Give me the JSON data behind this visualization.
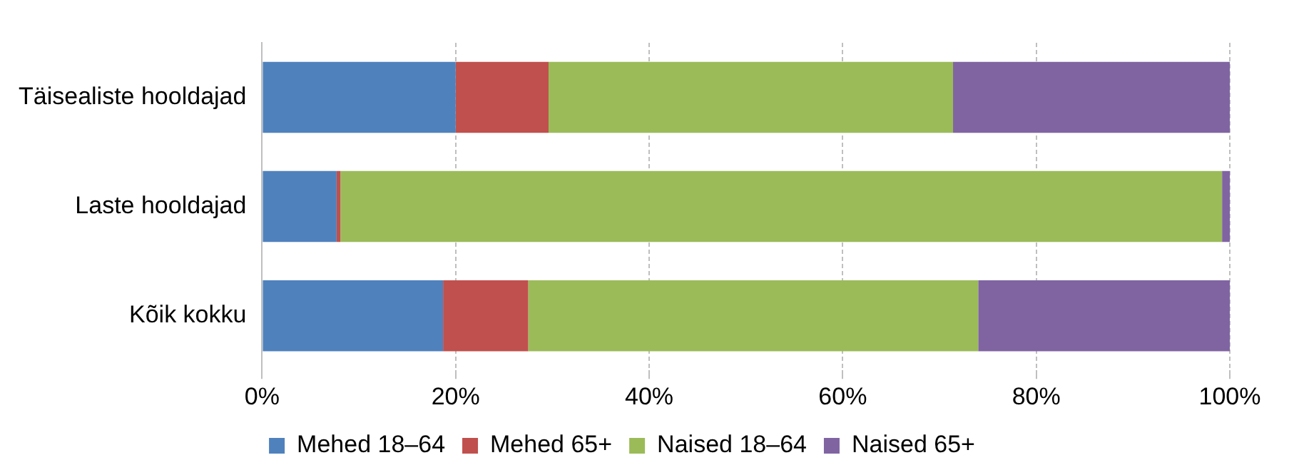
{
  "chart_data": {
    "type": "bar",
    "orientation": "horizontal",
    "stacked": true,
    "categories": [
      "Täisealiste hooldajad",
      "Laste hooldajad",
      "Kõik kokku"
    ],
    "series": [
      {
        "name": "Mehed 18–64",
        "color": "#4f81bd",
        "values": [
          20.0,
          7.7,
          18.7
        ]
      },
      {
        "name": "Mehed 65+",
        "color": "#c0504d",
        "values": [
          9.6,
          0.4,
          8.8
        ]
      },
      {
        "name": "Naised 18–64",
        "color": "#9bbb59",
        "values": [
          41.8,
          91.1,
          46.5
        ]
      },
      {
        "name": "Naised 65+",
        "color": "#8064a2",
        "values": [
          28.6,
          0.8,
          26.0
        ]
      }
    ],
    "xlim": [
      0,
      100
    ],
    "xticks": [
      {
        "value": 0,
        "label": "0%"
      },
      {
        "value": 20,
        "label": "20%"
      },
      {
        "value": 40,
        "label": "40%"
      },
      {
        "value": 60,
        "label": "60%"
      },
      {
        "value": 80,
        "label": "80%"
      },
      {
        "value": 100,
        "label": "100%"
      }
    ],
    "grid": "x",
    "legend": "bottom"
  }
}
